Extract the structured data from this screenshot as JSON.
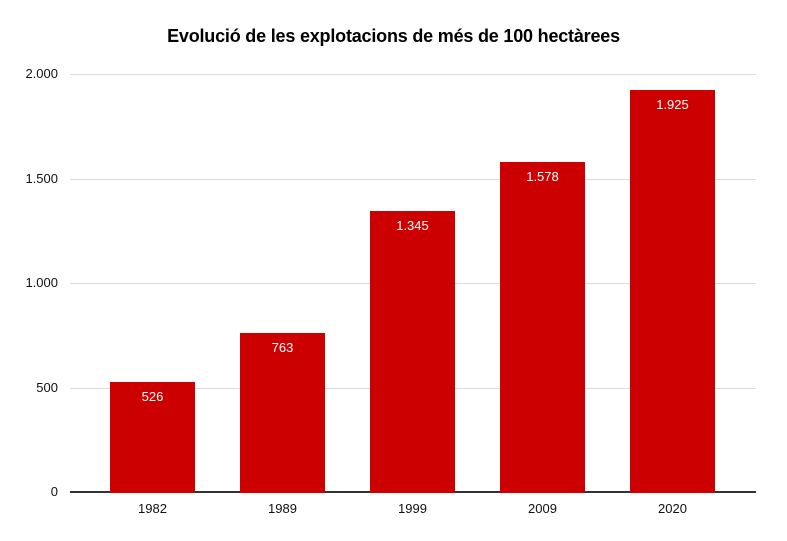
{
  "chart_data": {
    "type": "bar",
    "title": "Evolució de les explotacions de més de 100 hectàrees",
    "categories": [
      "1982",
      "1989",
      "1999",
      "2009",
      "2020"
    ],
    "values": [
      526,
      763,
      1345,
      1578,
      1925
    ],
    "value_labels": [
      "526",
      "763",
      "1.345",
      "1.578",
      "1.925"
    ],
    "xlabel": "",
    "ylabel": "",
    "ylim": [
      0,
      2000
    ],
    "yticks": [
      0,
      500,
      1000,
      1500,
      2000
    ],
    "ytick_labels": [
      "0",
      "500",
      "1.000",
      "1.500",
      "2.000"
    ],
    "grid": true,
    "legend": "none",
    "background": "#ffffff",
    "bar_color": "#cc0000",
    "value_label_color": "#ffffff",
    "gridline_color": "#dcdcdc",
    "axis_line_color": "#333333",
    "tick_label_color": "#111111",
    "title_color": "#000000"
  }
}
